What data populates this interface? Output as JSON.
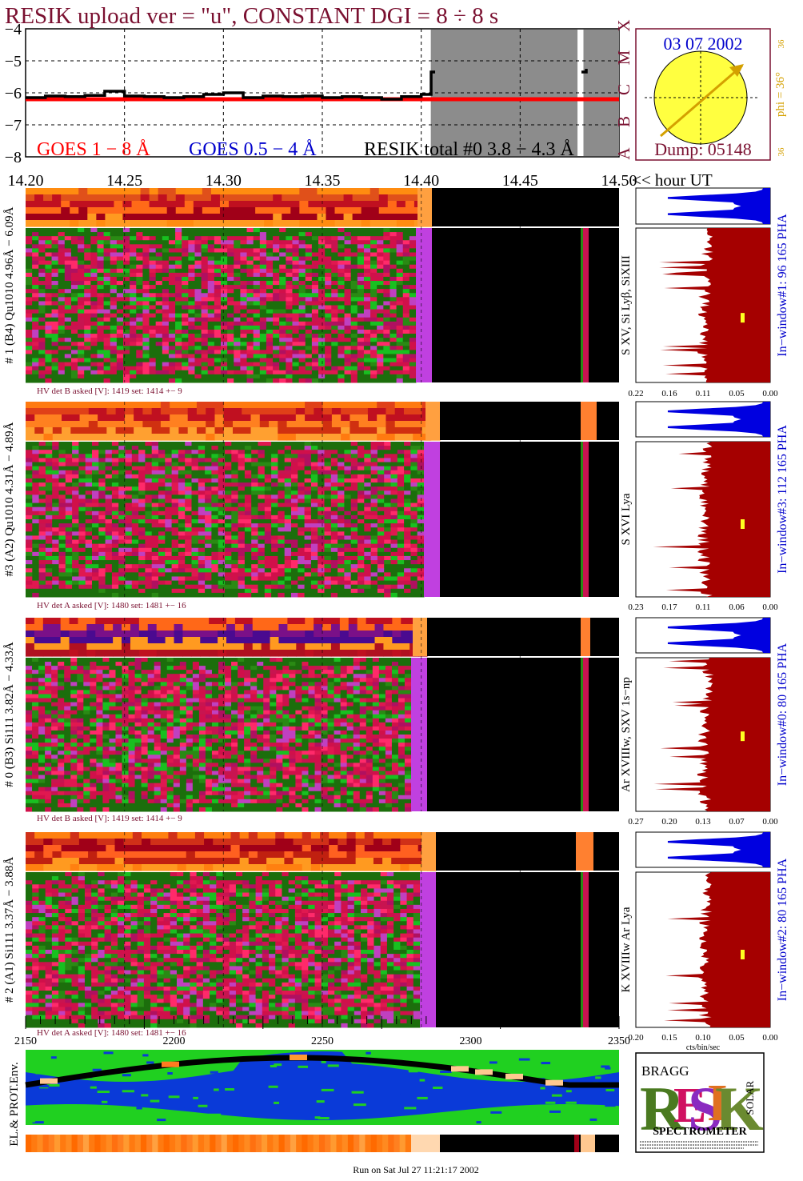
{
  "title": "RESIK upload ver = \"u\", CONSTANT  DGI =   8 ÷   8 s",
  "goes": {
    "y_ticks": [
      "−4",
      "−5",
      "−6",
      "−7",
      "−8"
    ],
    "x_ticks": [
      "14.20",
      "14.25",
      "14.30",
      "14.35",
      "14.40",
      "14.45",
      "14.50"
    ],
    "x_unit": "<< hour UT",
    "legend": [
      "GOES 1 − 8 Å",
      "GOES 0.5 − 4 Å",
      "RESIK total #0  3.8 − 4.3 Å"
    ],
    "classes": [
      "X",
      "M",
      "C",
      "B",
      "A"
    ]
  },
  "sun": {
    "date": "03 07 2002",
    "dump": "Dump: 05148",
    "phi": "phi = 36°",
    "tick_top": "36",
    "tick_bottom": "36"
  },
  "panels": [
    {
      "side_label": "# 1 (B4) Qu1010 4.96Å − 6.09Å",
      "line_label": "S XV, Si Lyβ, SiXIII",
      "window_label": "In−window#1:   96 165  PHA",
      "hv_label": "HV det B asked [V]:  1419 set:  1414  +−    9",
      "spec_ticks": [
        "0.22",
        "0.16",
        "0.11",
        "0.05",
        "0.00"
      ],
      "pha_label": ""
    },
    {
      "side_label": "#3 (A2) Qu1010  4.31Å − 4.89Å",
      "line_label": "S XVI Lya",
      "window_label": "In−window#3:   112 165  PHA",
      "hv_label": "HV det A asked [V]:  1480 set:  1481  +−    16",
      "spec_ticks": [
        "0.23",
        "0.17",
        "0.11",
        "0.06",
        "0.00"
      ],
      "pha_label": ""
    },
    {
      "side_label": "# 0 (B3) Si111  3.82Å − 4.33Å",
      "line_label": "Ar XVIIIw, SXV 1s−np",
      "window_label": "In−window#0:   80 165  PHA",
      "hv_label": "HV det B asked [V]:  1419 set:  1414  +−    9",
      "spec_ticks": [
        "0.27",
        "0.20",
        "0.13",
        "0.07",
        "0.00"
      ],
      "pha_label": ""
    },
    {
      "side_label": "# 2 (A1) Si111  3.37Å − 3.88Å",
      "line_label": "K XVIIIw  Ar Lya",
      "window_label": "In−window#2:   80 165  PHA",
      "hv_label": "HV det A asked [V]:  1480 set:  1481  +−    16",
      "spec_ticks": [
        "0.20",
        "0.15",
        "0.10",
        "0.05",
        "0.00"
      ],
      "pha_label": "cts/bin/sec"
    }
  ],
  "orbit": {
    "label": "EL.& PROT.Env.",
    "ticks": [
      "2150",
      "2200",
      "2250",
      "2300",
      "2350"
    ]
  },
  "logo": {
    "text": "SPECTROMETER",
    "small": "BRAGG",
    "solar": "SOLAR"
  },
  "footer": "Run on Sat Jul 27 11:21:17 2002",
  "colors": {
    "title": "#7a1030",
    "goes_red": "#ff0000",
    "goes_blue": "#0000cc",
    "sun": "#ffff40",
    "sun_arrow": "#d4a000",
    "spec_fill": "#a50000",
    "pha_fill": "#0000e0"
  },
  "chart_data": [
    {
      "type": "line",
      "title": "RESIK upload ver = \"u\", CONSTANT  DGI =   8 ÷   8 s",
      "xlabel": "<< hour UT",
      "ylabel": "",
      "xlim": [
        14.2,
        14.5
      ],
      "ylim": [
        -8,
        -4
      ],
      "y_scale": "log10 flux (exponent)",
      "grid": true,
      "series": [
        {
          "name": "GOES 1 − 8 Å",
          "color": "#ff0000",
          "x": [
            14.2,
            14.4,
            14.5
          ],
          "values": [
            -6.2,
            -6.2,
            -6.2
          ]
        },
        {
          "name": "RESIK total #0  3.8 − 4.3 Å",
          "color": "#000000",
          "x": [
            14.2,
            14.21,
            14.22,
            14.23,
            14.24,
            14.25,
            14.26,
            14.27,
            14.28,
            14.29,
            14.3,
            14.31,
            14.32,
            14.33,
            14.34,
            14.35,
            14.36,
            14.37,
            14.38,
            14.39,
            14.4,
            14.405,
            14.48
          ],
          "values": [
            -6.15,
            -6.1,
            -6.12,
            -6.08,
            -5.95,
            -6.1,
            -6.12,
            -6.15,
            -6.12,
            -6.05,
            -6.0,
            -6.15,
            -6.1,
            -6.12,
            -6.1,
            -6.15,
            -6.12,
            -6.15,
            -6.2,
            -6.12,
            -6.05,
            -5.35,
            -5.35
          ]
        }
      ],
      "shaded_intervals": [
        [
          14.4,
          14.479
        ],
        [
          14.482,
          14.5
        ]
      ]
    }
  ]
}
